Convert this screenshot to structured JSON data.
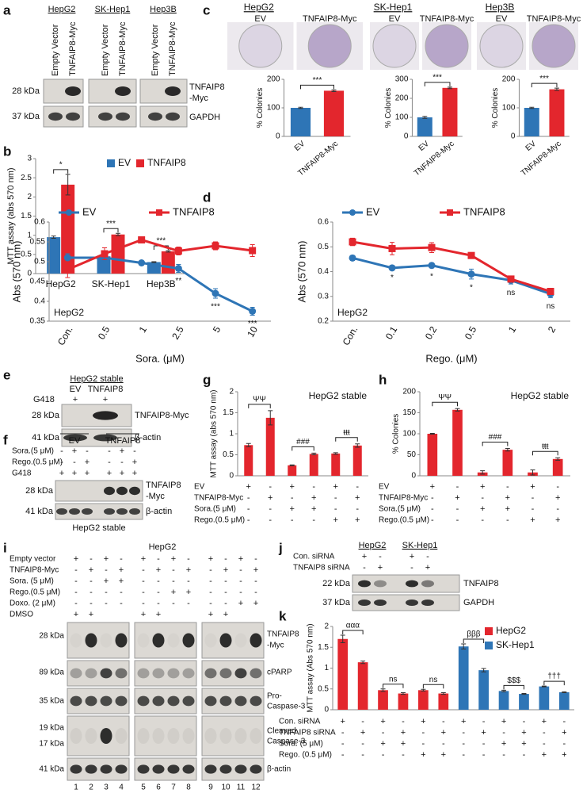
{
  "panel_letters": [
    "a",
    "b",
    "c",
    "d",
    "e",
    "f",
    "g",
    "h",
    "i",
    "j",
    "k"
  ],
  "chart_data": [
    {
      "type": "bar",
      "ylabel": "MTT assay (abs 570 nm)",
      "categories": [
        "HepG2",
        "SK-Hep1",
        "Hep3B"
      ],
      "series": [
        {
          "name": "EV",
          "color": "#2e75b6",
          "values": [
            0.95,
            0.45,
            0.3
          ],
          "errors": [
            0.03,
            0.01,
            0.01
          ]
        },
        {
          "name": "TNFAIP8",
          "color": "#e3262d",
          "values": [
            2.32,
            1.02,
            0.58
          ],
          "errors": [
            0.27,
            0.03,
            0.02
          ]
        }
      ],
      "ylim": [
        0,
        3
      ],
      "yticks": [
        0,
        0.5,
        1,
        1.5,
        2,
        2.5,
        3
      ],
      "annotations": [
        "*",
        "***",
        "***"
      ]
    },
    {
      "type": "bar",
      "title": "HepG2",
      "ylabel": "% Colonies",
      "categories": [
        "EV",
        "TNFAIP8-Myc"
      ],
      "values": [
        100,
        160
      ],
      "errors": [
        2,
        3
      ],
      "colors": [
        "#2e75b6",
        "#e3262d"
      ],
      "ylim": [
        0,
        200
      ],
      "yticks": [
        0,
        100,
        200
      ],
      "annotations": [
        "***"
      ]
    },
    {
      "type": "bar",
      "title": "SK-Hep1",
      "ylabel": "% Colonies",
      "categories": [
        "EV",
        "TNFAIP8-Myc"
      ],
      "values": [
        100,
        255
      ],
      "errors": [
        5,
        4
      ],
      "colors": [
        "#2e75b6",
        "#e3262d"
      ],
      "ylim": [
        0,
        300
      ],
      "yticks": [
        0,
        100,
        200,
        300
      ],
      "annotations": [
        "***"
      ]
    },
    {
      "type": "bar",
      "title": "Hep3B",
      "ylabel": "% Colonies",
      "categories": [
        "EV",
        "TNFAIP8-Myc"
      ],
      "values": [
        100,
        165
      ],
      "errors": [
        2,
        4
      ],
      "colors": [
        "#2e75b6",
        "#e3262d"
      ],
      "ylim": [
        0,
        200
      ],
      "yticks": [
        0,
        100,
        200
      ],
      "annotations": [
        "***"
      ]
    },
    {
      "type": "line",
      "ylabel": "Abs (570 nm)",
      "xlabel": "Sora. (μM)",
      "note": "HepG2",
      "categories": [
        "Con.",
        "0.5",
        "1",
        "2.5",
        "5",
        "10"
      ],
      "series": [
        {
          "name": "EV",
          "color": "#2e75b6",
          "values": [
            0.51,
            0.51,
            0.497,
            0.483,
            0.42,
            0.375
          ],
          "errors": [
            0.01,
            0.01,
            0.005,
            0.01,
            0.012,
            0.01
          ]
        },
        {
          "name": "TNFAIP8",
          "color": "#e3262d",
          "values": [
            0.48,
            0.52,
            0.555,
            0.527,
            0.54,
            0.528
          ],
          "errors": [
            0.02,
            0.015,
            0.005,
            0.01,
            0.01,
            0.015
          ]
        }
      ],
      "ylim": [
        0.35,
        0.6
      ],
      "yticks": [
        0.35,
        0.4,
        0.45,
        0.5,
        0.55,
        0.6
      ],
      "annotations": [
        "**",
        "***",
        "***"
      ]
    },
    {
      "type": "line",
      "ylabel": "Abs (570 nm)",
      "xlabel": "Rego. (μM)",
      "note": "HepG2",
      "categories": [
        "Con.",
        "0.1",
        "0.2",
        "0.5",
        "1",
        "2"
      ],
      "series": [
        {
          "name": "EV",
          "color": "#2e75b6",
          "values": [
            0.455,
            0.415,
            0.425,
            0.39,
            0.365,
            0.31
          ],
          "errors": [
            0.01,
            0.005,
            0.01,
            0.02,
            0.015,
            0.015
          ]
        },
        {
          "name": "TNFAIP8",
          "color": "#e3262d",
          "values": [
            0.52,
            0.493,
            0.497,
            0.465,
            0.37,
            0.32
          ],
          "errors": [
            0.015,
            0.025,
            0.02,
            0.01,
            0.01,
            0.01
          ]
        }
      ],
      "ylim": [
        0.2,
        0.6
      ],
      "yticks": [
        0.2,
        0.3,
        0.4,
        0.5,
        0.6
      ],
      "annotations": [
        "*",
        "*",
        "*",
        "ns",
        "ns"
      ]
    },
    {
      "type": "bar",
      "title": "HepG2 stable",
      "ylabel": "MTT assay (abs 570 nm)",
      "values": [
        0.73,
        1.38,
        0.25,
        0.52,
        0.53,
        0.72
      ],
      "errors": [
        0.04,
        0.17,
        0.01,
        0.02,
        0.02,
        0.04
      ],
      "color": "#e3262d",
      "ylim": [
        0,
        2
      ],
      "yticks": [
        0,
        0.5,
        1,
        1.5,
        2
      ],
      "annotations": [
        "ΨΨ",
        "###",
        "ŧŧŧ"
      ],
      "conditions": [
        {
          "name": "EV",
          "signs": [
            "+",
            "-",
            "+",
            "-",
            "+",
            "-"
          ]
        },
        {
          "name": "TNFAIP8-Myc",
          "signs": [
            "-",
            "+",
            "-",
            "+",
            "-",
            "+"
          ]
        },
        {
          "name": "Sora.(5 μM)",
          "signs": [
            "-",
            "-",
            "+",
            "+",
            "-",
            "-"
          ]
        },
        {
          "name": "Rego.(0.5 μM)",
          "signs": [
            "-",
            "-",
            "-",
            "-",
            "+",
            "+"
          ]
        }
      ]
    },
    {
      "type": "bar",
      "title": "HepG2 stable",
      "ylabel": "% Colonies",
      "values": [
        100,
        157,
        8,
        62,
        8,
        40
      ],
      "errors": [
        1,
        3,
        4,
        3,
        6,
        3
      ],
      "color": "#e3262d",
      "ylim": [
        0,
        200
      ],
      "yticks": [
        0,
        50,
        100,
        150,
        200
      ],
      "annotations": [
        "ΨΨ",
        "###",
        "ŧŧŧ"
      ],
      "conditions": [
        {
          "name": "EV",
          "signs": [
            "+",
            "-",
            "+",
            "-",
            "+",
            "-"
          ]
        },
        {
          "name": "TNFAIP8-Myc",
          "signs": [
            "-",
            "+",
            "-",
            "+",
            "-",
            "+"
          ]
        },
        {
          "name": "Sora.(5 μM)",
          "signs": [
            "-",
            "-",
            "+",
            "+",
            "-",
            "-"
          ]
        },
        {
          "name": "Rego.(0.5 μM)",
          "signs": [
            "-",
            "-",
            "-",
            "-",
            "+",
            "+"
          ]
        }
      ]
    },
    {
      "type": "bar",
      "ylabel": "MTT assay (Abs 570 nm)",
      "series": [
        {
          "name": "HepG2",
          "color": "#e3262d",
          "values": [
            1.7,
            1.14,
            0.47,
            0.39,
            0.47,
            0.39
          ],
          "errors": [
            0.09,
            0.03,
            0.03,
            0.02,
            0.02,
            0.02
          ]
        },
        {
          "name": "SK-Hep1",
          "color": "#2e75b6",
          "values": [
            1.52,
            0.95,
            0.45,
            0.38,
            0.56,
            0.42
          ],
          "errors": [
            0.06,
            0.04,
            0.02,
            0.01,
            0.01,
            0.01
          ]
        }
      ],
      "ylim": [
        0,
        2
      ],
      "yticks": [
        0,
        0.5,
        1,
        1.5,
        2
      ],
      "annotations": [
        "ααα",
        "ns",
        "ns",
        "βββ",
        "$$$",
        "†††"
      ],
      "conditions": [
        {
          "name": "Con. siRNA",
          "signs": [
            "+",
            "-",
            "+",
            "-",
            "+",
            "-",
            "+",
            "-",
            "+",
            "-",
            "+",
            "-"
          ]
        },
        {
          "name": "TNFAIP8 siRNA",
          "signs": [
            "-",
            "+",
            "-",
            "+",
            "-",
            "+",
            "-",
            "+",
            "-",
            "+",
            "-",
            "+"
          ]
        },
        {
          "name": "Sora.  (5 μM)",
          "signs": [
            "-",
            "-",
            "+",
            "+",
            "-",
            "-",
            "-",
            "-",
            "+",
            "+",
            "-",
            "-"
          ]
        },
        {
          "name": "Rego. (0.5 μM)",
          "signs": [
            "-",
            "-",
            "-",
            "-",
            "+",
            "+",
            "-",
            "-",
            "-",
            "-",
            "+",
            "+"
          ]
        }
      ]
    }
  ],
  "blots": {
    "a": {
      "cell_lines": [
        "HepG2",
        "SK-Hep1",
        "Hep3B"
      ],
      "lanes": [
        "Empty Vector",
        "TNFAIP8-Myc",
        "Empty Vector",
        "TNFAIP8-Myc",
        "Empty Vector",
        "TNFAIP8-Myc"
      ],
      "markers": [
        "28 kDa",
        "37 kDa"
      ],
      "proteins": [
        "TNFAIP8",
        "-Myc",
        "GAPDH"
      ]
    },
    "e": {
      "title": "HepG2 stable",
      "lanes": [
        "EV",
        "TNFAIP8"
      ],
      "rows": [
        {
          "name": "G418",
          "signs": [
            "+",
            "+"
          ]
        }
      ],
      "markers": [
        "28 kDa",
        "41 kDa"
      ],
      "proteins": [
        "TNFAIP8-Myc",
        "β-actin"
      ]
    },
    "f": {
      "groups": [
        "EV",
        "TNFAIP8"
      ],
      "rows": [
        {
          "name": "Sora.(5 μM)",
          "signs": [
            "-",
            "+",
            "-",
            "-",
            "+",
            "-"
          ]
        },
        {
          "name": "Rego.(0.5 μM)",
          "signs": [
            "-",
            "-",
            "+",
            "-",
            "-",
            "+"
          ]
        },
        {
          "name": "G418",
          "signs": [
            "+",
            "+",
            "+",
            "+",
            "+",
            "+"
          ]
        }
      ],
      "markers": [
        "28 kDa",
        "41 kDa"
      ],
      "proteins": [
        "TNFAIP8",
        "-Myc",
        "β-actin"
      ],
      "caption": "HepG2 stable"
    },
    "i": {
      "title": "HepG2",
      "rows": [
        {
          "name": "Empty vector",
          "signs": [
            "+",
            "-",
            "+",
            "-",
            "+",
            "-",
            "+",
            "-",
            "+",
            "-",
            "+",
            "-"
          ]
        },
        {
          "name": "TNFAIP8-Myc",
          "signs": [
            "-",
            "+",
            "-",
            "+",
            "-",
            "+",
            "-",
            "+",
            "-",
            "+",
            "-",
            "+"
          ]
        },
        {
          "name": "Sora. (5 μM)",
          "signs": [
            "-",
            "-",
            "+",
            "+",
            "-",
            "-",
            "-",
            "-",
            "-",
            "-",
            "-",
            "-"
          ]
        },
        {
          "name": "Rego.(0.5 μM)",
          "signs": [
            "-",
            "-",
            "-",
            "-",
            "-",
            "-",
            "+",
            "+",
            "-",
            "-",
            "-",
            "-"
          ]
        },
        {
          "name": "Doxo. (2 μM)",
          "signs": [
            "-",
            "-",
            "-",
            "-",
            "-",
            "-",
            "-",
            "-",
            "-",
            "-",
            "+",
            "+"
          ]
        },
        {
          "name": "DMSO",
          "signs": [
            "+",
            "+",
            null,
            null,
            "+",
            "+",
            null,
            null,
            "+",
            "+",
            null,
            null
          ]
        }
      ],
      "markers": [
        "28 kDa",
        "89 kDa",
        "35 kDa",
        "19 kDa",
        "17 kDa",
        "41 kDa"
      ],
      "proteins": [
        "TNFAIP8",
        "-Myc",
        "cPARP",
        "Pro-",
        "Caspase-3",
        "Cleaved",
        "Caspase-3",
        "β-actin"
      ],
      "lane_numbers": [
        1,
        2,
        3,
        4,
        5,
        6,
        7,
        8,
        9,
        10,
        11,
        12
      ]
    },
    "j": {
      "cell_lines": [
        "HepG2",
        "SK-Hep1"
      ],
      "rows": [
        {
          "name": "Con. siRNA",
          "signs": [
            "+",
            "-",
            "+",
            "-"
          ]
        },
        {
          "name": "TNFAIP8 siRNA",
          "signs": [
            "-",
            "+",
            "-",
            "+"
          ]
        }
      ],
      "markers": [
        "22 kDa",
        "37 kDa"
      ],
      "proteins": [
        "TNFAIP8",
        "GAPDH"
      ]
    }
  }
}
